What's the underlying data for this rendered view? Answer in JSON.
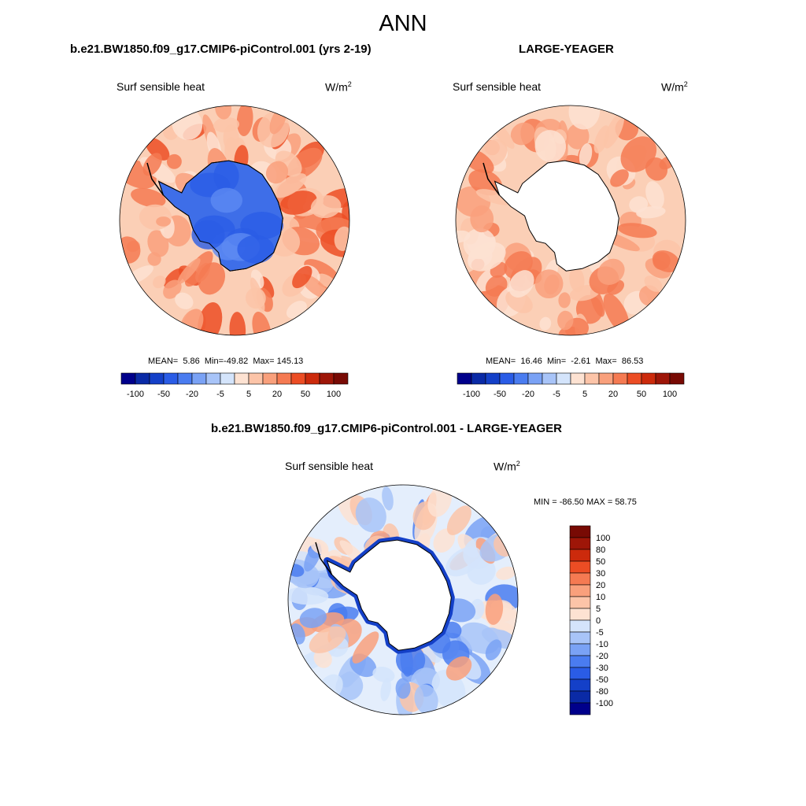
{
  "title": "ANN",
  "panels": [
    {
      "case": "b.e21.BW1850.f09_g17.CMIP6-piControl.001 (yrs 2-19)",
      "variable": "Surf sensible heat",
      "units_base": "W/m",
      "units_exp": "2",
      "stats": {
        "mean_label": "MEAN=",
        "mean": "5.86",
        "min_label": "Min=",
        "min": "-49.82",
        "max_label": "Max=",
        "max": "145.13"
      }
    },
    {
      "case": "LARGE-YEAGER",
      "variable": "Surf sensible heat",
      "units_base": "W/m",
      "units_exp": "2",
      "stats": {
        "mean_label": "MEAN=",
        "mean": "16.46",
        "min_label": "Min=",
        "min": "-2.61",
        "max_label": "Max=",
        "max": "86.53"
      }
    },
    {
      "case": "b.e21.BW1850.f09_g17.CMIP6-piControl.001 - LARGE-YEAGER",
      "variable": "Surf sensible heat",
      "units_base": "W/m",
      "units_exp": "2",
      "minmax": "MIN = -86.50 MAX =  58.75"
    }
  ],
  "chart_data": [
    {
      "type": "heatmap",
      "title": "b.e21.BW1850.f09_g17.CMIP6-piControl.001 (yrs 2-19)",
      "projection": "south polar stereographic",
      "variable": "Surf sensible heat",
      "units": "W/m2",
      "mean": 5.86,
      "min": -49.82,
      "max": 145.13,
      "colorbar_ticks": [
        "-100",
        "-50",
        "-20",
        "-5",
        "5",
        "20",
        "50",
        "100"
      ],
      "levels": [
        -100,
        -80,
        -50,
        -30,
        -20,
        -10,
        -5,
        0,
        5,
        10,
        20,
        30,
        50,
        80,
        100
      ]
    },
    {
      "type": "heatmap",
      "title": "LARGE-YEAGER",
      "projection": "south polar stereographic",
      "variable": "Surf sensible heat",
      "units": "W/m2",
      "mean": 16.46,
      "min": -2.61,
      "max": 86.53,
      "colorbar_ticks": [
        "-100",
        "-50",
        "-20",
        "-5",
        "5",
        "20",
        "50",
        "100"
      ],
      "levels": [
        -100,
        -80,
        -50,
        -30,
        -20,
        -10,
        -5,
        0,
        5,
        10,
        20,
        30,
        50,
        80,
        100
      ]
    },
    {
      "type": "heatmap",
      "title": "b.e21.BW1850.f09_g17.CMIP6-piControl.001 - LARGE-YEAGER",
      "projection": "south polar stereographic",
      "variable": "Surf sensible heat",
      "units": "W/m2",
      "min": -86.5,
      "max": 58.75,
      "colorbar_ticks": [
        "100",
        "80",
        "50",
        "30",
        "20",
        "10",
        "5",
        "0",
        "-5",
        "-10",
        "-20",
        "-30",
        "-50",
        "-80",
        "-100"
      ],
      "levels": [
        -100,
        -80,
        -50,
        -30,
        -20,
        -10,
        -5,
        0,
        5,
        10,
        20,
        30,
        50,
        80,
        100
      ]
    }
  ],
  "colors": {
    "scale": [
      "#00008b",
      "#0a2aa6",
      "#1440c8",
      "#2a5ce6",
      "#4a7cf0",
      "#7aa2f5",
      "#a8c4f8",
      "#d4e4fb",
      "#fde2d2",
      "#fcc4a8",
      "#f9a07c",
      "#f57a52",
      "#ec4d24",
      "#cc2a0c",
      "#9e1608",
      "#780a04"
    ],
    "land_model": "#3e6ee8",
    "land_none": "#ffffff",
    "outline": "#000000"
  }
}
